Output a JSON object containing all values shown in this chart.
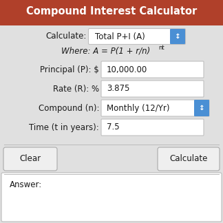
{
  "title": "Compound Interest Calculator",
  "title_bg": "#b0402a",
  "title_color": "#ffffff",
  "bg_color": "#e0e0e0",
  "border_color": "#bbbbbb",
  "field_bg": "#ffffff",
  "field_border": "#c0c0c0",
  "button_bg": "#efefef",
  "button_border": "#aaaaaa",
  "dropdown_blue": "#4a8fd4",
  "text_color": "#1a1a1a",
  "label_color": "#1a1a1a",
  "title_fontsize": 10.5,
  "label_fontsize": 8.5,
  "value_fontsize": 8.5,
  "calculate_label": "Calculate:",
  "calculate_value": "Total P+I (A)",
  "fields": [
    {
      "label": "Principal (P): $",
      "value": "10,000.00",
      "dropdown": false
    },
    {
      "label": "Rate (R): %",
      "value": "3.875",
      "dropdown": false
    },
    {
      "label": "Compound (n):",
      "value": "Monthly (12/Yr)",
      "dropdown": true
    },
    {
      "label": "Time (t in years):",
      "value": "7.5",
      "dropdown": false
    }
  ],
  "button1": "Clear",
  "button2": "Calculate",
  "answer_label": "Answer:"
}
